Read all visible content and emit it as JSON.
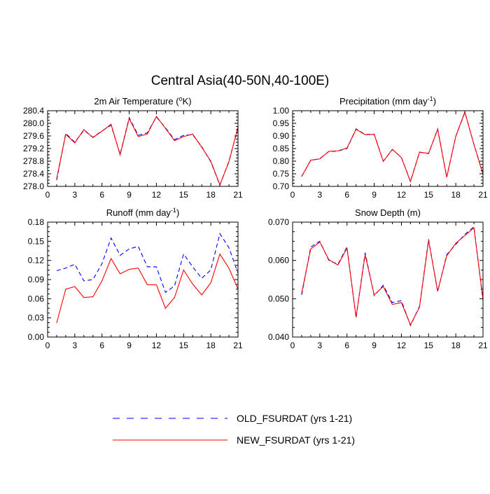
{
  "page": {
    "title": "Central Asia(40-50N,40-100E)"
  },
  "colors": {
    "old": "#0000ff",
    "new": "#ff0000",
    "axis": "#000000"
  },
  "legend": {
    "items": [
      {
        "label": "OLD_FSURDAT (yrs 1-21)",
        "style": "dashed",
        "color": "#0000ff"
      },
      {
        "label": "NEW_FSURDAT (yrs 1-21)",
        "style": "solid",
        "color": "#ff0000"
      }
    ]
  },
  "chart_data": [
    {
      "type": "line",
      "title": "2m Air Temperature (",
      "title_sup": "o",
      "title_tail": "K)",
      "xlim": [
        0,
        21
      ],
      "ylim": [
        278.0,
        280.4
      ],
      "xticks": [
        0,
        3,
        6,
        9,
        12,
        15,
        18,
        21
      ],
      "yticks": [
        278.0,
        278.4,
        278.8,
        279.2,
        279.6,
        280.0,
        280.4
      ],
      "ytick_labels": [
        "278.0",
        "278.4",
        "278.8",
        "279.2",
        "279.6",
        "280.0",
        "280.4"
      ],
      "x": [
        1,
        2,
        3,
        4,
        5,
        6,
        7,
        8,
        9,
        10,
        11,
        12,
        13,
        14,
        15,
        16,
        17,
        18,
        19,
        20,
        21
      ],
      "series": [
        {
          "key": "old",
          "values": [
            278.2,
            279.68,
            279.4,
            279.78,
            279.56,
            279.76,
            279.94,
            279.02,
            280.18,
            279.62,
            279.7,
            280.2,
            279.86,
            279.48,
            279.62,
            279.64,
            279.26,
            278.78,
            278.04,
            278.8,
            279.86
          ]
        },
        {
          "key": "new",
          "values": [
            278.25,
            279.65,
            279.38,
            279.8,
            279.55,
            279.75,
            279.97,
            279.0,
            280.15,
            279.58,
            279.66,
            280.22,
            279.84,
            279.45,
            279.58,
            279.66,
            279.24,
            278.8,
            278.05,
            278.78,
            279.88
          ]
        }
      ]
    },
    {
      "type": "line",
      "title": "Precipitation (mm day",
      "title_sup": "-1",
      "title_tail": ")",
      "xlim": [
        0,
        21
      ],
      "ylim": [
        0.7,
        1.0
      ],
      "xticks": [
        0,
        3,
        6,
        9,
        12,
        15,
        18,
        21
      ],
      "yticks": [
        0.7,
        0.75,
        0.8,
        0.85,
        0.9,
        0.95,
        1.0
      ],
      "ytick_labels": [
        "0.70",
        "0.75",
        "0.80",
        "0.85",
        "0.90",
        "0.95",
        "1.00"
      ],
      "x": [
        1,
        2,
        3,
        4,
        5,
        6,
        7,
        8,
        9,
        10,
        11,
        12,
        13,
        14,
        15,
        16,
        17,
        18,
        19,
        20,
        21
      ],
      "series": [
        {
          "key": "old",
          "values": [
            0.74,
            0.803,
            0.81,
            0.838,
            0.84,
            0.85,
            0.928,
            0.906,
            0.907,
            0.8,
            0.846,
            0.815,
            0.72,
            0.836,
            0.83,
            0.928,
            0.737,
            0.898,
            0.993,
            0.867,
            0.75
          ]
        },
        {
          "key": "new",
          "values": [
            0.739,
            0.804,
            0.809,
            0.839,
            0.841,
            0.852,
            0.926,
            0.905,
            0.906,
            0.799,
            0.847,
            0.814,
            0.719,
            0.835,
            0.831,
            0.926,
            0.736,
            0.899,
            0.995,
            0.866,
            0.748
          ]
        }
      ]
    },
    {
      "type": "line",
      "title": "Runoff (mm day",
      "title_sup": "-1",
      "title_tail": ")",
      "xlim": [
        0,
        21
      ],
      "ylim": [
        0.0,
        0.18
      ],
      "xticks": [
        0,
        3,
        6,
        9,
        12,
        15,
        18,
        21
      ],
      "yticks": [
        0.0,
        0.03,
        0.06,
        0.09,
        0.12,
        0.15,
        0.18
      ],
      "ytick_labels": [
        "0.00",
        "0.03",
        "0.06",
        "0.09",
        "0.12",
        "0.15",
        "0.18"
      ],
      "x": [
        1,
        2,
        3,
        4,
        5,
        6,
        7,
        8,
        9,
        10,
        11,
        12,
        13,
        14,
        15,
        16,
        17,
        18,
        19,
        20,
        21
      ],
      "series": [
        {
          "key": "old",
          "values": [
            0.104,
            0.108,
            0.114,
            0.088,
            0.09,
            0.115,
            0.155,
            0.128,
            0.138,
            0.142,
            0.11,
            0.11,
            0.07,
            0.08,
            0.13,
            0.11,
            0.092,
            0.105,
            0.162,
            0.14,
            0.1
          ]
        },
        {
          "key": "new",
          "values": [
            0.022,
            0.075,
            0.079,
            0.062,
            0.063,
            0.088,
            0.123,
            0.099,
            0.106,
            0.108,
            0.082,
            0.082,
            0.045,
            0.062,
            0.105,
            0.083,
            0.066,
            0.085,
            0.13,
            0.108,
            0.075
          ]
        }
      ]
    },
    {
      "type": "line",
      "title": "Snow Depth (m)",
      "title_sup": "",
      "title_tail": "",
      "xlim": [
        0,
        21
      ],
      "ylim": [
        0.04,
        0.07
      ],
      "xticks": [
        0,
        3,
        6,
        9,
        12,
        15,
        18,
        21
      ],
      "yticks": [
        0.04,
        0.05,
        0.06,
        0.07
      ],
      "ytick_labels": [
        "0.040",
        "0.050",
        "0.060",
        "0.070"
      ],
      "x": [
        1,
        2,
        3,
        4,
        5,
        6,
        7,
        8,
        9,
        10,
        11,
        12,
        13,
        14,
        15,
        16,
        17,
        18,
        19,
        20,
        21
      ],
      "series": [
        {
          "key": "old",
          "values": [
            0.051,
            0.0635,
            0.065,
            0.06,
            0.059,
            0.0635,
            0.045,
            0.062,
            0.0508,
            0.0535,
            0.049,
            0.0495,
            0.043,
            0.048,
            0.0655,
            0.0518,
            0.0615,
            0.0642,
            0.0668,
            0.0688,
            0.0495
          ]
        },
        {
          "key": "new",
          "values": [
            0.0515,
            0.063,
            0.0648,
            0.0602,
            0.0588,
            0.0632,
            0.0452,
            0.0615,
            0.051,
            0.0532,
            0.0485,
            0.049,
            0.0432,
            0.0478,
            0.0652,
            0.052,
            0.0612,
            0.0645,
            0.0665,
            0.0685,
            0.0498
          ]
        }
      ]
    }
  ]
}
